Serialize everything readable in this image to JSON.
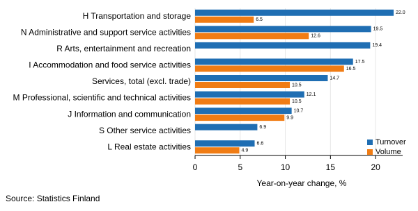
{
  "chart_data": {
    "type": "hbar",
    "categories": [
      "H Transportation and storage",
      "N Administrative and support service activities",
      "R Arts, entertainment and recreation",
      "I Accommodation and food service activities",
      "Services, total (excl. trade)",
      "M Professional, scientific and technical activities",
      "J Information and communication",
      "S Other service activities",
      "L Real estate activities"
    ],
    "series": [
      {
        "name": "Turnover",
        "color": "#1f6eb3",
        "values": [
          22.0,
          19.5,
          19.4,
          17.5,
          14.7,
          12.1,
          10.7,
          6.9,
          6.6
        ],
        "value_labels": [
          "22.0",
          "19.5",
          "19.4",
          "17.5",
          "14.7",
          "12.1",
          "10.7",
          "6.9",
          "6.6"
        ]
      },
      {
        "name": "Volume",
        "color": "#f07c14",
        "values": [
          6.5,
          12.6,
          null,
          16.5,
          10.5,
          10.5,
          9.9,
          null,
          4.9
        ]
      }
    ],
    "xlim": [
      0,
      23
    ],
    "xticks": [
      0,
      5,
      10,
      15,
      20
    ],
    "grid": true,
    "xlabel": "Year-on-year change, %",
    "legend": "lower right",
    "source": "Source: Statistics Finland"
  }
}
